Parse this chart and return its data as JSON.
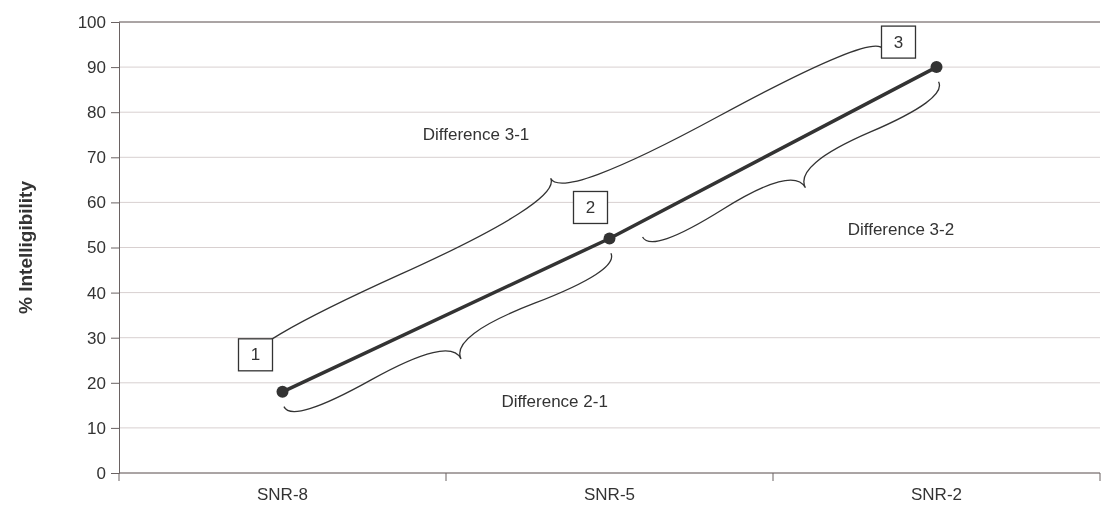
{
  "chart_data": {
    "type": "line",
    "ylabel": "% Intelligibility",
    "categories": [
      "SNR-8",
      "SNR-5",
      "SNR-2"
    ],
    "series": [
      {
        "color": "#333333",
        "values": [
          18,
          52,
          90
        ]
      }
    ],
    "ylim": [
      0,
      100
    ],
    "yticks": [
      0,
      10,
      20,
      30,
      40,
      50,
      60,
      70,
      80,
      90,
      100
    ],
    "grid": "y",
    "marker": "circle",
    "line_style": "solid",
    "annotations": [
      "1",
      "2",
      "3",
      "Difference 3-1",
      "Difference 3-2",
      "Difference 2-1"
    ]
  }
}
